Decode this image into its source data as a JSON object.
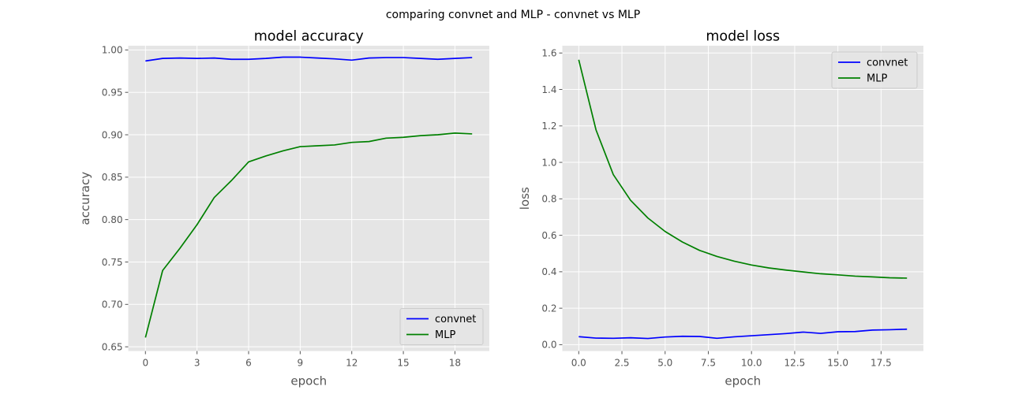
{
  "figure": {
    "suptitle": "comparing convnet and MLP - convnet vs MLP"
  },
  "chart_data": [
    {
      "type": "line",
      "title": "model accuracy",
      "xlabel": "epoch",
      "ylabel": "accuracy",
      "x": [
        0,
        1,
        2,
        3,
        4,
        5,
        6,
        7,
        8,
        9,
        10,
        11,
        12,
        13,
        14,
        15,
        16,
        17,
        18,
        19
      ],
      "xlim": [
        -1.0,
        20.0
      ],
      "ylim": [
        0.645,
        1.005
      ],
      "xticks": [
        0,
        3,
        6,
        9,
        12,
        15,
        18
      ],
      "xtick_labels": [
        "0",
        "3",
        "6",
        "9",
        "12",
        "15",
        "18"
      ],
      "yticks": [
        0.65,
        0.7,
        0.75,
        0.8,
        0.85,
        0.9,
        0.95,
        1.0
      ],
      "ytick_labels": [
        "0.65",
        "0.70",
        "0.75",
        "0.80",
        "0.85",
        "0.90",
        "0.95",
        "1.00"
      ],
      "grid": true,
      "legend_position": "lower-right",
      "series": [
        {
          "name": "convnet",
          "color": "#0000ff",
          "values": [
            0.987,
            0.99,
            0.9905,
            0.99,
            0.9905,
            0.989,
            0.989,
            0.99,
            0.9915,
            0.9915,
            0.9905,
            0.9895,
            0.988,
            0.9905,
            0.991,
            0.991,
            0.99,
            0.989,
            0.99,
            0.991
          ]
        },
        {
          "name": "MLP",
          "color": "#008000",
          "values": [
            0.661,
            0.74,
            0.766,
            0.794,
            0.826,
            0.846,
            0.868,
            0.875,
            0.881,
            0.886,
            0.887,
            0.888,
            0.891,
            0.892,
            0.896,
            0.897,
            0.899,
            0.9,
            0.902,
            0.901
          ]
        }
      ]
    },
    {
      "type": "line",
      "title": "model loss",
      "xlabel": "epoch",
      "ylabel": "loss",
      "x": [
        0,
        1,
        2,
        3,
        4,
        5,
        6,
        7,
        8,
        9,
        10,
        11,
        12,
        13,
        14,
        15,
        16,
        17,
        18,
        19
      ],
      "xlim": [
        -0.95,
        19.95
      ],
      "ylim": [
        -0.035,
        1.64
      ],
      "xticks": [
        0,
        2.5,
        5,
        7.5,
        10,
        12.5,
        15,
        17.5
      ],
      "xtick_labels": [
        "0.0",
        "2.5",
        "5.0",
        "7.5",
        "10.0",
        "12.5",
        "15.0",
        "17.5"
      ],
      "yticks": [
        0,
        0.2,
        0.4,
        0.6,
        0.8,
        1.0,
        1.2,
        1.4,
        1.6
      ],
      "ytick_labels": [
        "0.0",
        "0.2",
        "0.4",
        "0.6",
        "0.8",
        "1.0",
        "1.2",
        "1.4",
        "1.6"
      ],
      "grid": true,
      "legend_position": "upper-right",
      "series": [
        {
          "name": "convnet",
          "color": "#0000ff",
          "values": [
            0.044,
            0.036,
            0.035,
            0.038,
            0.034,
            0.042,
            0.046,
            0.045,
            0.035,
            0.043,
            0.049,
            0.055,
            0.061,
            0.069,
            0.062,
            0.071,
            0.072,
            0.08,
            0.082,
            0.085
          ]
        },
        {
          "name": "MLP",
          "color": "#008000",
          "values": [
            1.563,
            1.178,
            0.933,
            0.792,
            0.695,
            0.621,
            0.563,
            0.517,
            0.484,
            0.458,
            0.437,
            0.421,
            0.409,
            0.399,
            0.389,
            0.383,
            0.376,
            0.372,
            0.367,
            0.365
          ]
        }
      ]
    }
  ]
}
